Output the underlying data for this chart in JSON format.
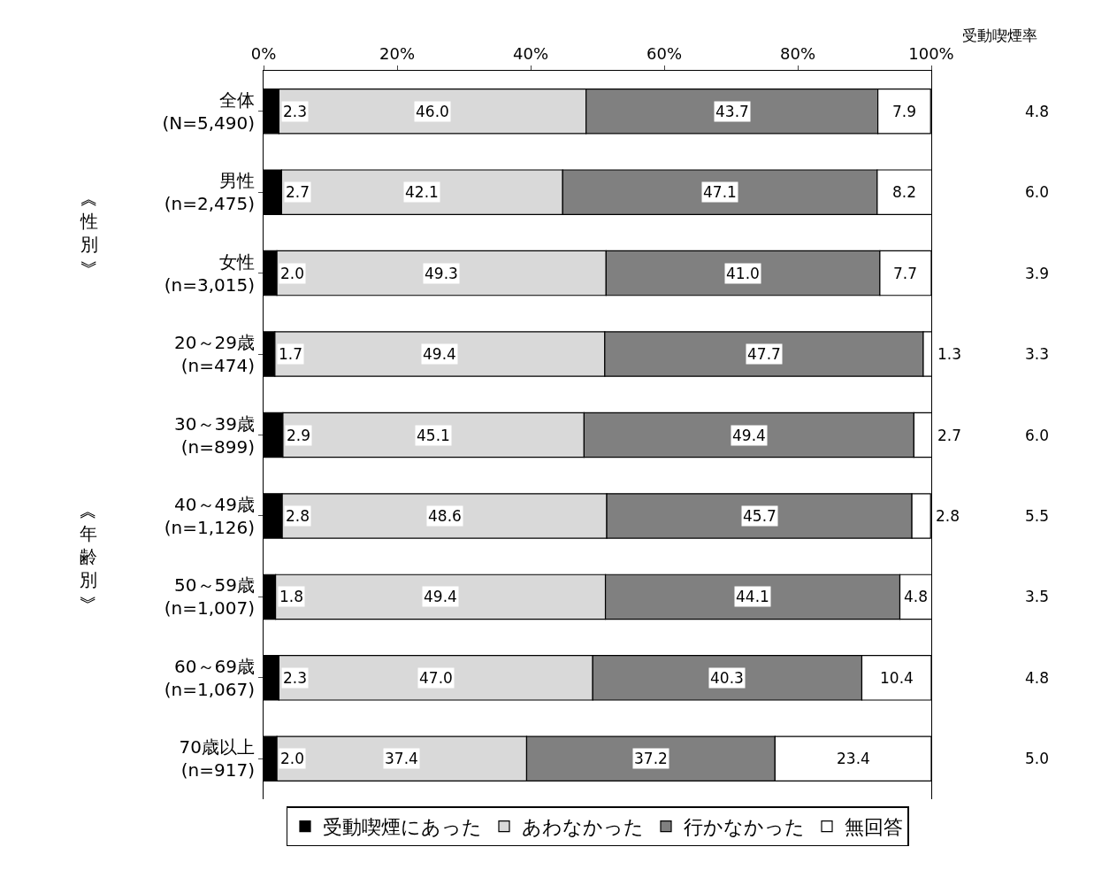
{
  "chart_data": {
    "type": "bar",
    "orientation": "horizontal",
    "stacked": true,
    "categories": [
      "全体\n(N=5,490)",
      "男性\n(n=2,475)",
      "女性\n(n=3,015)",
      "20～29歳\n(n=474)",
      "30～39歳\n(n=899)",
      "40～49歳\n(n=1,126)",
      "50～59歳\n(n=1,007)",
      "60～69歳\n(n=1,067)",
      "70歳以上\n(n=917)"
    ],
    "series": [
      {
        "name": "受動喫煙にあった",
        "color": "#000000",
        "values": [
          2.3,
          2.7,
          2.0,
          1.7,
          2.9,
          2.8,
          1.8,
          2.3,
          2.0
        ],
        "value_labels": [
          "2.3",
          "2.7",
          "2.0",
          "1.7",
          "2.9",
          "2.8",
          "1.8",
          "2.3",
          "2.0"
        ]
      },
      {
        "name": "あわなかった",
        "color": "#d9d9d9",
        "values": [
          46.0,
          42.1,
          49.3,
          49.4,
          45.1,
          48.6,
          49.4,
          47.0,
          37.4
        ],
        "value_labels": [
          "46.0",
          "42.1",
          "49.3",
          "49.4",
          "45.1",
          "48.6",
          "49.4",
          "47.0",
          "37.4"
        ]
      },
      {
        "name": "行かなかった",
        "color": "#808080",
        "values": [
          43.7,
          47.1,
          41.0,
          47.7,
          49.4,
          45.7,
          44.1,
          40.3,
          37.2
        ],
        "value_labels": [
          "43.7",
          "47.1",
          "41.0",
          "47.7",
          "49.4",
          "45.7",
          "44.1",
          "40.3",
          "37.2"
        ]
      },
      {
        "name": "無回答",
        "color": "#ffffff",
        "values": [
          7.9,
          8.2,
          7.7,
          1.3,
          2.7,
          2.8,
          4.8,
          10.4,
          23.4
        ],
        "value_labels": [
          "7.9",
          "8.2",
          "7.7",
          "1.3",
          "2.7",
          "2.8",
          "4.8",
          "10.4",
          "23.4"
        ]
      }
    ],
    "xlim": [
      0,
      100
    ],
    "xticks": [
      {
        "value": 0,
        "label": "0%"
      },
      {
        "value": 20,
        "label": "20%"
      },
      {
        "value": 40,
        "label": "40%"
      },
      {
        "value": 60,
        "label": "60%"
      },
      {
        "value": 80,
        "label": "80%"
      },
      {
        "value": 100,
        "label": "100%"
      }
    ],
    "legend": "bottom",
    "annotations": [
      "受動喫煙率",
      "4.8",
      "6.0",
      "3.9",
      "3.3",
      "6.0",
      "5.5",
      "3.5",
      "4.8",
      "5.0",
      "︽性別︾",
      "︽年齢別︾"
    ]
  }
}
